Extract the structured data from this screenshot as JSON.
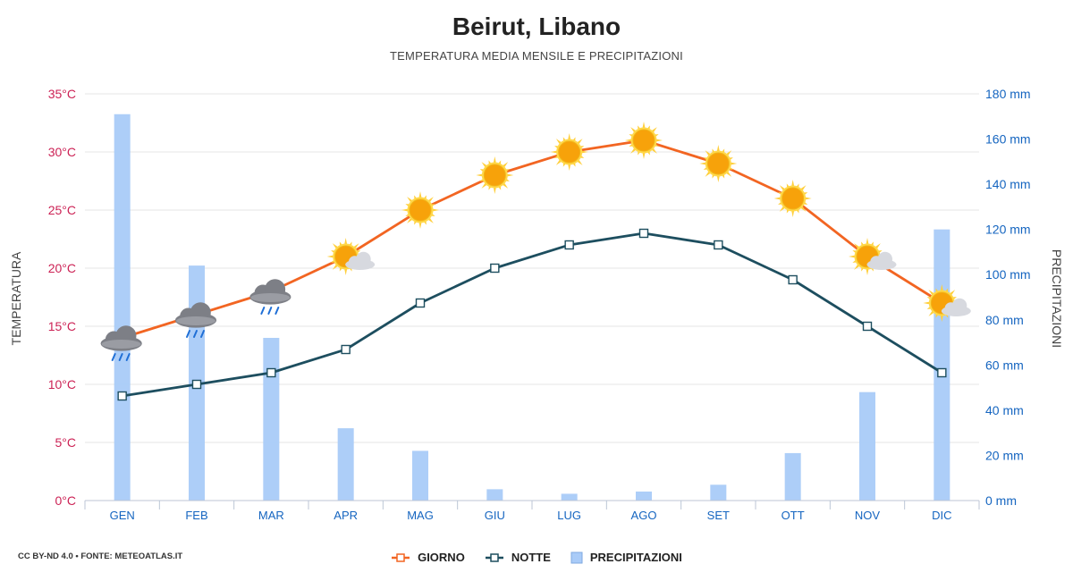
{
  "title": "Beirut, Libano",
  "subtitle": "TEMPERATURA MEDIA MENSILE E PRECIPITAZIONI",
  "credit": "CC BY-ND 4.0 • FONTE: METEOATLAS.IT",
  "legend": {
    "day": "GIORNO",
    "night": "NOTTE",
    "precip": "PRECIPITAZIONI"
  },
  "colors": {
    "day": "#f26522",
    "night": "#1d4e5f",
    "precip": "#a9cbf8",
    "temp_axis": "#cc2255",
    "precip_axis": "#1565c0"
  },
  "chart_data": {
    "type": "line",
    "categories": [
      "GEN",
      "FEB",
      "MAR",
      "APR",
      "MAG",
      "GIU",
      "LUG",
      "AGO",
      "SET",
      "OTT",
      "NOV",
      "DIC"
    ],
    "series": [
      {
        "name": "GIORNO",
        "axis": "left",
        "values": [
          14,
          16,
          18,
          21,
          25,
          28,
          30,
          31,
          29,
          26,
          21,
          17
        ]
      },
      {
        "name": "NOTTE",
        "axis": "left",
        "values": [
          9,
          10,
          11,
          13,
          17,
          20,
          22,
          23,
          22,
          19,
          15,
          11
        ]
      },
      {
        "name": "PRECIPITAZIONI",
        "type": "bar",
        "axis": "right",
        "values": [
          171,
          104,
          72,
          32,
          22,
          5,
          3,
          4,
          7,
          21,
          48,
          120
        ]
      }
    ],
    "weather_icons": [
      "rain",
      "rain",
      "rain",
      "sun-cloud",
      "sun",
      "sun",
      "sun",
      "sun",
      "sun",
      "sun",
      "sun-cloud",
      "sun-cloud"
    ],
    "ylabel": "TEMPERATURA",
    "y2label": "PRECIPITAZIONI",
    "ylim": [
      0,
      35
    ],
    "y2lim": [
      0,
      180
    ],
    "yticks": [
      "0°C",
      "5°C",
      "10°C",
      "15°C",
      "20°C",
      "25°C",
      "30°C",
      "35°C"
    ],
    "y2ticks": [
      "0 mm",
      "20 mm",
      "40 mm",
      "60 mm",
      "80 mm",
      "100 mm",
      "120 mm",
      "140 mm",
      "160 mm",
      "180 mm"
    ],
    "grid": true,
    "legend_position": "bottom"
  }
}
